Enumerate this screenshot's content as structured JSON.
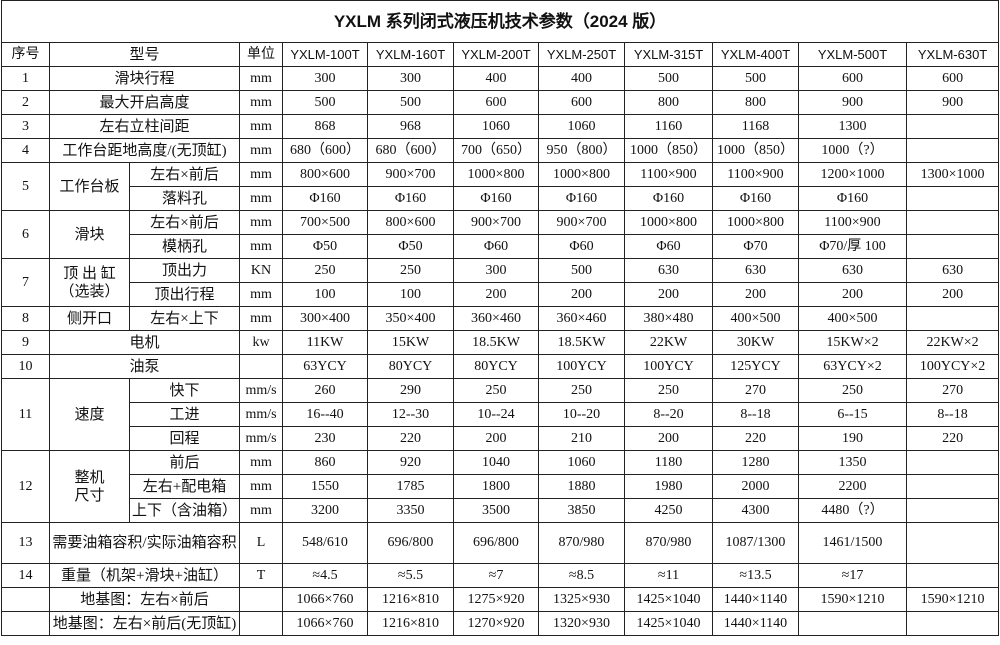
{
  "title": "YXLM 系列闭式液压机技术参数（2024 版）",
  "header": [
    "序号",
    "型号",
    "单位",
    "YXLM-100T",
    "YXLM-160T",
    "YXLM-200T",
    "YXLM-250T",
    "YXLM-315T",
    "YXLM-400T",
    "YXLM-500T",
    "YXLM-630T"
  ],
  "rows": [
    {
      "no": "1",
      "label": "滑块行程",
      "unit": "mm",
      "values": [
        "300",
        "300",
        "400",
        "400",
        "500",
        "500",
        "600",
        "600"
      ]
    },
    {
      "no": "2",
      "label": "最大开启高度",
      "unit": "mm",
      "values": [
        "500",
        "500",
        "600",
        "600",
        "800",
        "800",
        "900",
        "900"
      ]
    },
    {
      "no": "3",
      "label": "左右立柱间距",
      "unit": "mm",
      "values": [
        "868",
        "968",
        "1060",
        "1060",
        "1160",
        "1168",
        "1300",
        null
      ]
    },
    {
      "no": "4",
      "label": "工作台距地高度/(无顶缸)",
      "unit": "mm",
      "values": [
        "680（600）",
        "680（600）",
        "700（650）",
        "950（800）",
        "1000（850）",
        "1000（850）",
        "1000（?）",
        null
      ]
    },
    {
      "no": "5",
      "label": "工作台板",
      "items": [
        {
          "label": "左右×前后",
          "unit": "mm",
          "values": [
            "800×600",
            "900×700",
            "1000×800",
            "1000×800",
            "1100×900",
            "1100×900",
            "1200×1000",
            "1300×1000"
          ]
        },
        {
          "label": "落料孔",
          "unit": "mm",
          "values": [
            "Φ160",
            "Φ160",
            "Φ160",
            "Φ160",
            "Φ160",
            "Φ160",
            "Φ160",
            null
          ]
        }
      ]
    },
    {
      "no": "6",
      "label": "滑块",
      "items": [
        {
          "label": "左右×前后",
          "unit": "mm",
          "values": [
            "700×500",
            "800×600",
            "900×700",
            "900×700",
            "1000×800",
            "1000×800",
            "1100×900",
            null
          ]
        },
        {
          "label": "模柄孔",
          "unit": "mm",
          "values": [
            "Φ50",
            "Φ50",
            "Φ60",
            "Φ60",
            "Φ60",
            "Φ70",
            "Φ70/厚 100",
            null
          ]
        }
      ]
    },
    {
      "no": "7",
      "label": "顶 出 缸\n（选装）",
      "items": [
        {
          "label": "顶出力",
          "unit": "KN",
          "values": [
            "250",
            "250",
            "300",
            "500",
            "630",
            "630",
            "630",
            "630"
          ]
        },
        {
          "label": "顶出行程",
          "unit": "mm",
          "values": [
            "100",
            "100",
            "200",
            "200",
            "200",
            "200",
            "200",
            "200"
          ]
        }
      ]
    },
    {
      "no": "8",
      "label": "侧开口",
      "items": [
        {
          "label": "左右×上下",
          "unit": "mm",
          "values": [
            "300×400",
            "350×400",
            "360×460",
            "360×460",
            "380×480",
            "400×500",
            "400×500",
            null
          ]
        }
      ]
    },
    {
      "no": "9",
      "label": "电机",
      "unit": "kw",
      "values": [
        "11KW",
        "15KW",
        "18.5KW",
        "18.5KW",
        "22KW",
        "30KW",
        "15KW×2",
        "22KW×2"
      ]
    },
    {
      "no": "10",
      "label": "油泵",
      "unit": null,
      "values": [
        "63YCY",
        "80YCY",
        "80YCY",
        "100YCY",
        "100YCY",
        "125YCY",
        "63YCY×2",
        "100YCY×2"
      ]
    },
    {
      "no": "11",
      "label": "速度",
      "items": [
        {
          "label": "快下",
          "unit": "mm/s",
          "values": [
            "260",
            "290",
            "250",
            "250",
            "250",
            "270",
            "250",
            "270"
          ]
        },
        {
          "label": "工进",
          "unit": "mm/s",
          "values": [
            "16--40",
            "12--30",
            "10--24",
            "10--20",
            "8--20",
            "8--18",
            "6--15",
            "8--18"
          ]
        },
        {
          "label": "回程",
          "unit": "mm/s",
          "values": [
            "230",
            "220",
            "200",
            "210",
            "200",
            "220",
            "190",
            "220"
          ]
        }
      ]
    },
    {
      "no": "12",
      "label": "整机\n尺寸",
      "items": [
        {
          "label": "前后",
          "unit": "mm",
          "values": [
            "860",
            "920",
            "1040",
            "1060",
            "1180",
            "1280",
            "1350",
            null
          ]
        },
        {
          "label": "左右+配电箱",
          "unit": "mm",
          "values": [
            "1550",
            "1785",
            "1800",
            "1880",
            "1980",
            "2000",
            "2200",
            null
          ]
        },
        {
          "label": "上下（含油箱）",
          "unit": "mm",
          "values": [
            "3200",
            "3350",
            "3500",
            "3850",
            "4250",
            "4300",
            "4480（?）",
            null
          ]
        }
      ]
    },
    {
      "no": "13",
      "label": "需要油箱容积/实际油箱容积",
      "unit": "L",
      "values": [
        "548/610",
        "696/800",
        "696/800",
        "870/980",
        "870/980",
        "1087/1300",
        "1461/1500",
        null
      ]
    },
    {
      "no": "14",
      "label": "重量（机架+滑块+油缸）",
      "unit": "T",
      "values": [
        "≈4.5",
        "≈5.5",
        "≈7",
        "≈8.5",
        "≈11",
        "≈13.5",
        "≈17",
        null
      ]
    },
    {
      "no": null,
      "label": "地基图：左右×前后",
      "unit": null,
      "values": [
        "1066×760",
        "1216×810",
        "1275×920",
        "1325×930",
        "1425×1040",
        "1440×1140",
        "1590×1210",
        "1590×1210"
      ]
    },
    {
      "no": null,
      "label": "地基图：左右×前后(无顶缸)",
      "unit": null,
      "values": [
        "1066×760",
        "1216×810",
        "1270×920",
        "1320×930",
        "1425×1040",
        "1440×1140",
        null,
        null
      ]
    }
  ]
}
